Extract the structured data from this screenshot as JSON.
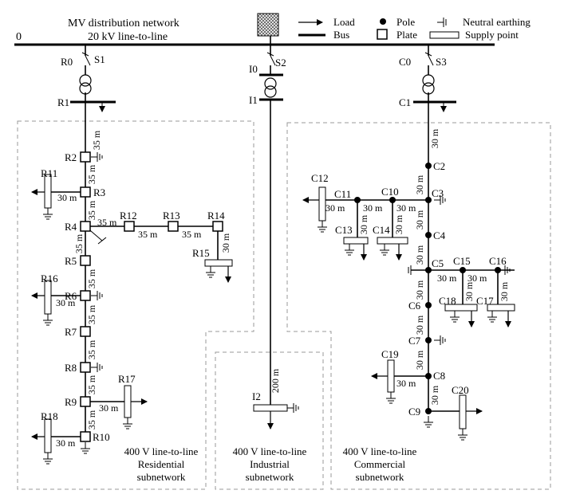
{
  "header": {
    "mv_line1": "MV distribution network",
    "mv_line2": "20 kV line-to-line",
    "zero": "0"
  },
  "legend": {
    "load": "Load",
    "bus": "Bus",
    "pole": "Pole",
    "plate": "Plate",
    "neutral": "Neutral earthing",
    "supply": "Supply point"
  },
  "nodes": {
    "R0": "R0",
    "R1": "R1",
    "R2": "R2",
    "R3": "R3",
    "R4": "R4",
    "R5": "R5",
    "R6": "R6",
    "R7": "R7",
    "R8": "R8",
    "R9": "R9",
    "R10": "R10",
    "R11": "R11",
    "R12": "R12",
    "R13": "R13",
    "R14": "R14",
    "R15": "R15",
    "R16": "R16",
    "R17": "R17",
    "R18": "R18",
    "S1": "S1",
    "S2": "S2",
    "S3": "S3",
    "I0": "I0",
    "I1": "I1",
    "I2": "I2",
    "C0": "C0",
    "C1": "C1",
    "C2": "C2",
    "C3": "C3",
    "C4": "C4",
    "C5": "C5",
    "C6": "C6",
    "C7": "C7",
    "C8": "C8",
    "C9": "C9",
    "C10": "C10",
    "C11": "C11",
    "C12": "C12",
    "C13": "C13",
    "C14": "C14",
    "C15": "C15",
    "C16": "C16",
    "C17": "C17",
    "C18": "C18",
    "C19": "C19",
    "C20": "C20"
  },
  "distances": {
    "d35": "35 m",
    "d30": "30 m",
    "d200": "200 m"
  },
  "subnetworks": {
    "residential_l1": "400 V line-to-line",
    "residential_l2": "Residential",
    "residential_l3": "subnetwork",
    "industrial_l1": "400 V line-to-line",
    "industrial_l2": "Industrial",
    "industrial_l3": "subnetwork",
    "commercial_l1": "400 V line-to-line",
    "commercial_l2": "Commercial",
    "commercial_l3": "subnetwork"
  }
}
